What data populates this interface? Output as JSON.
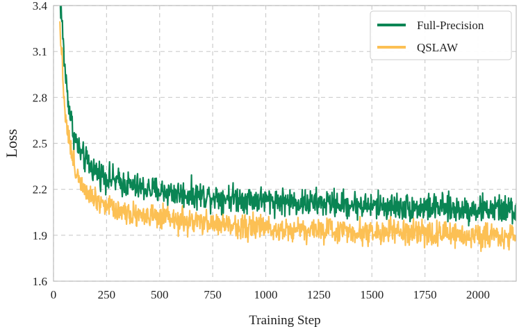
{
  "chart_data": {
    "type": "line",
    "xlabel": "Training Step",
    "ylabel": "Loss",
    "xlim": [
      0,
      2180
    ],
    "ylim": [
      1.6,
      3.4
    ],
    "xticks": [
      0,
      250,
      500,
      750,
      1000,
      1250,
      1500,
      1750,
      2000
    ],
    "yticks": [
      1.6,
      1.9,
      2.2,
      2.5,
      2.8,
      3.1,
      3.4
    ],
    "grid": true,
    "legend": "top-right",
    "series": [
      {
        "name": "Full-Precision",
        "color": "#0a8554",
        "x": [
          30,
          40,
          50,
          60,
          70,
          80,
          90,
          100,
          110,
          120,
          130,
          140,
          150,
          175,
          200,
          250,
          300,
          350,
          400,
          450,
          500,
          600,
          700,
          800,
          900,
          1000,
          1100,
          1200,
          1300,
          1400,
          1500,
          1600,
          1700,
          1800,
          1900,
          2000,
          2100,
          2180
        ],
        "y": [
          3.45,
          3.3,
          3.05,
          2.9,
          2.78,
          2.68,
          2.6,
          2.54,
          2.5,
          2.46,
          2.43,
          2.41,
          2.39,
          2.35,
          2.32,
          2.28,
          2.25,
          2.23,
          2.21,
          2.2,
          2.19,
          2.17,
          2.16,
          2.15,
          2.14,
          2.13,
          2.12,
          2.11,
          2.11,
          2.1,
          2.09,
          2.09,
          2.08,
          2.08,
          2.07,
          2.07,
          2.07,
          2.06
        ],
        "noise": 0.055
      },
      {
        "name": "QSLAW",
        "color": "#fcc054",
        "x": [
          30,
          40,
          50,
          60,
          70,
          80,
          90,
          100,
          110,
          120,
          130,
          140,
          150,
          175,
          200,
          250,
          300,
          350,
          400,
          450,
          500,
          600,
          700,
          800,
          900,
          1000,
          1100,
          1200,
          1300,
          1400,
          1500,
          1600,
          1700,
          1800,
          1900,
          2000,
          2100,
          2180
        ],
        "y": [
          3.3,
          3.05,
          2.8,
          2.65,
          2.55,
          2.47,
          2.4,
          2.35,
          2.31,
          2.28,
          2.25,
          2.23,
          2.21,
          2.17,
          2.14,
          2.1,
          2.07,
          2.05,
          2.04,
          2.02,
          2.01,
          1.99,
          1.98,
          1.97,
          1.96,
          1.95,
          1.94,
          1.94,
          1.93,
          1.93,
          1.92,
          1.92,
          1.91,
          1.91,
          1.9,
          1.9,
          1.9,
          1.89
        ],
        "noise": 0.05
      }
    ]
  }
}
